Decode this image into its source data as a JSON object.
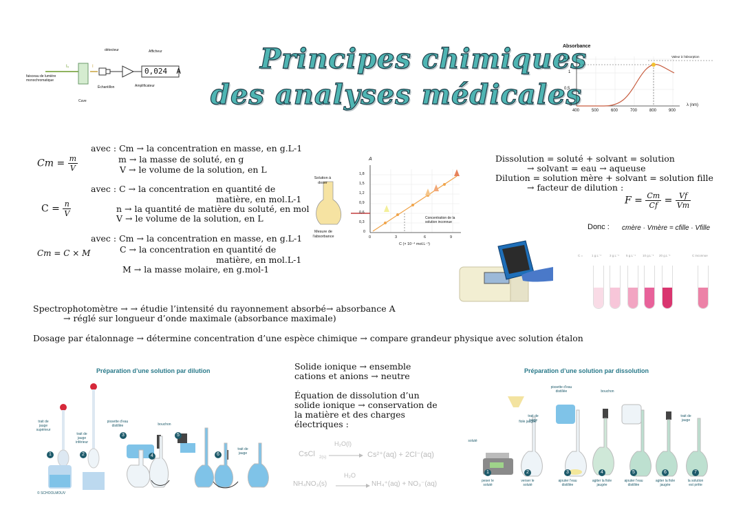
{
  "title": {
    "line1": "Principes chimiques",
    "line2": "des analyses médicales"
  },
  "spectro_diagram": {
    "detector": "détecteur",
    "display_label": "Afficheur",
    "display_value": "0,024  A",
    "beam": "faisceau de lumière monochromatique",
    "sample": "Échantillon",
    "amplifier": "Amplificateur",
    "cuvette": "Cuve",
    "i0": "I₀",
    "i": "I"
  },
  "absorbance_chart": {
    "ylabel": "Absorbance",
    "xlabel": "λ (nm)",
    "y_ticks": [
      "1,5",
      "1",
      "0,5",
      "0"
    ],
    "x_ticks": [
      "400",
      "500",
      "600",
      "700",
      "800",
      "900"
    ],
    "annotation": "Valeur à l'absorption"
  },
  "definitions": {
    "cm_formula": "Cm =",
    "cm_num": "m",
    "cm_den": "V",
    "block1": [
      "avec : Cm → la concentration en masse, en g.L-1",
      "m → la masse de soluté, en g",
      "V → le volume de la solution, en L"
    ],
    "c_formula": "C =",
    "c_num": "n",
    "c_den": "V",
    "block2": [
      "avec : C → la concentration en quantité de",
      "matière, en mol.L-1",
      "n → la quantité de matière du soluté, en mol",
      "V → le volume de la solution, en L"
    ],
    "cmcm_formula": "Cm = C × M",
    "block3": [
      "avec : Cm → la concentration en masse, en g.L-1",
      "C →  la concentration en quantité de",
      "matière, en mol.L-1",
      "M → la masse molaire, en g.mol-1"
    ]
  },
  "calibration_chart": {
    "left_label1": "Solution à doser",
    "left_label2": "Mesure de l'absorbance",
    "y_axis": "A",
    "x_axis": "C (× 10⁻⁴ mol.L⁻¹)",
    "y_ticks": [
      "1,8",
      "1,5",
      "1,2",
      "0,9",
      "0,6",
      "0,3",
      "0"
    ],
    "x_ticks": [
      "0",
      "3",
      "6",
      "9"
    ],
    "annotation": "Concentration de la solution inconnue"
  },
  "dilution_text": {
    "line1": "Dissolution = soluté + solvant = solution",
    "line2": "→ solvant = eau → aqueuse",
    "line3": "Dilution = solution mère + solvant = solution fille",
    "line4": "→ facteur de dilution :",
    "f_left": "F =",
    "f_frac1_num": "Cm",
    "f_frac1_den": "Cf",
    "f_frac2_num": "Vf",
    "f_frac2_den": "Vm",
    "donc": "Donc :",
    "donc_eq": "cmère · Vmère = cfille · Vfille"
  },
  "tubes_labels": [
    "C =",
    "1 g.L⁻¹",
    "3 g.L⁻¹",
    "5 g.L⁻¹",
    "10 g.L⁻¹",
    "20 g.L⁻¹",
    "C inconnue"
  ],
  "spectro_text": {
    "line1": "Spectrophotomètre → → étudie l’intensité du rayonnement absorbé→ absorbance A",
    "line2": "→ réglé sur longueur d’onde maximale (absorbance maximale)",
    "line3": "Dosage par étalonnage → détermine concentration d’une espèce chimique → compare grandeur physique avec solution étalon"
  },
  "dilution_panel": {
    "title": "Préparation d’une solution par dilution",
    "labels": [
      "trait de jauge supérieur",
      "trait de jauge inférieur",
      "pissette d'eau distillée",
      "bouchon",
      "trait de jauge"
    ],
    "copyright": "© SCHOOLMOUV"
  },
  "ionic_text": {
    "line1": "Solide ionique → ensemble",
    "line2": "cations et anions → neutre",
    "line3": "Équation de dissolution d’un",
    "line4": "solide ionique → conservation de",
    "line5": "la matière et des charges",
    "line6": "électriques :",
    "eq1_left": "CsCl",
    "eq1_left_sub": "2(s)",
    "eq1_over": "H₂O(l)",
    "eq1_right": "Cs²⁺(aq) + 2Cl⁻(aq)",
    "eq2_left": "NH₄NO₃(s)",
    "eq2_over": "H₂O",
    "eq2_right": "NH₄⁺(aq) + NO₃⁻(aq)"
  },
  "dissolution_panel": {
    "title": "Préparation d’une solution par dissolution",
    "labels": [
      "pissette d'eau distillée",
      "bouchon",
      "fiole jaugée",
      "trait de jauge",
      "trait de jauge",
      "soluté"
    ],
    "steps": [
      "peser le soluté",
      "verser le soluté",
      "ajouter l'eau distillée",
      "agiter la fiole jaugée",
      "ajouter l'eau distillée",
      "agiter la fiole jaugée",
      "la solution est prête"
    ]
  },
  "colors": {
    "title_fill": "#4fb5b3",
    "title_stroke": "#1d3b46",
    "step_circle": "#1d5a6a",
    "pink_dark": "#e0417f",
    "pink_light": "#f7c6d9",
    "blue_liquid": "#7fc3e8"
  }
}
